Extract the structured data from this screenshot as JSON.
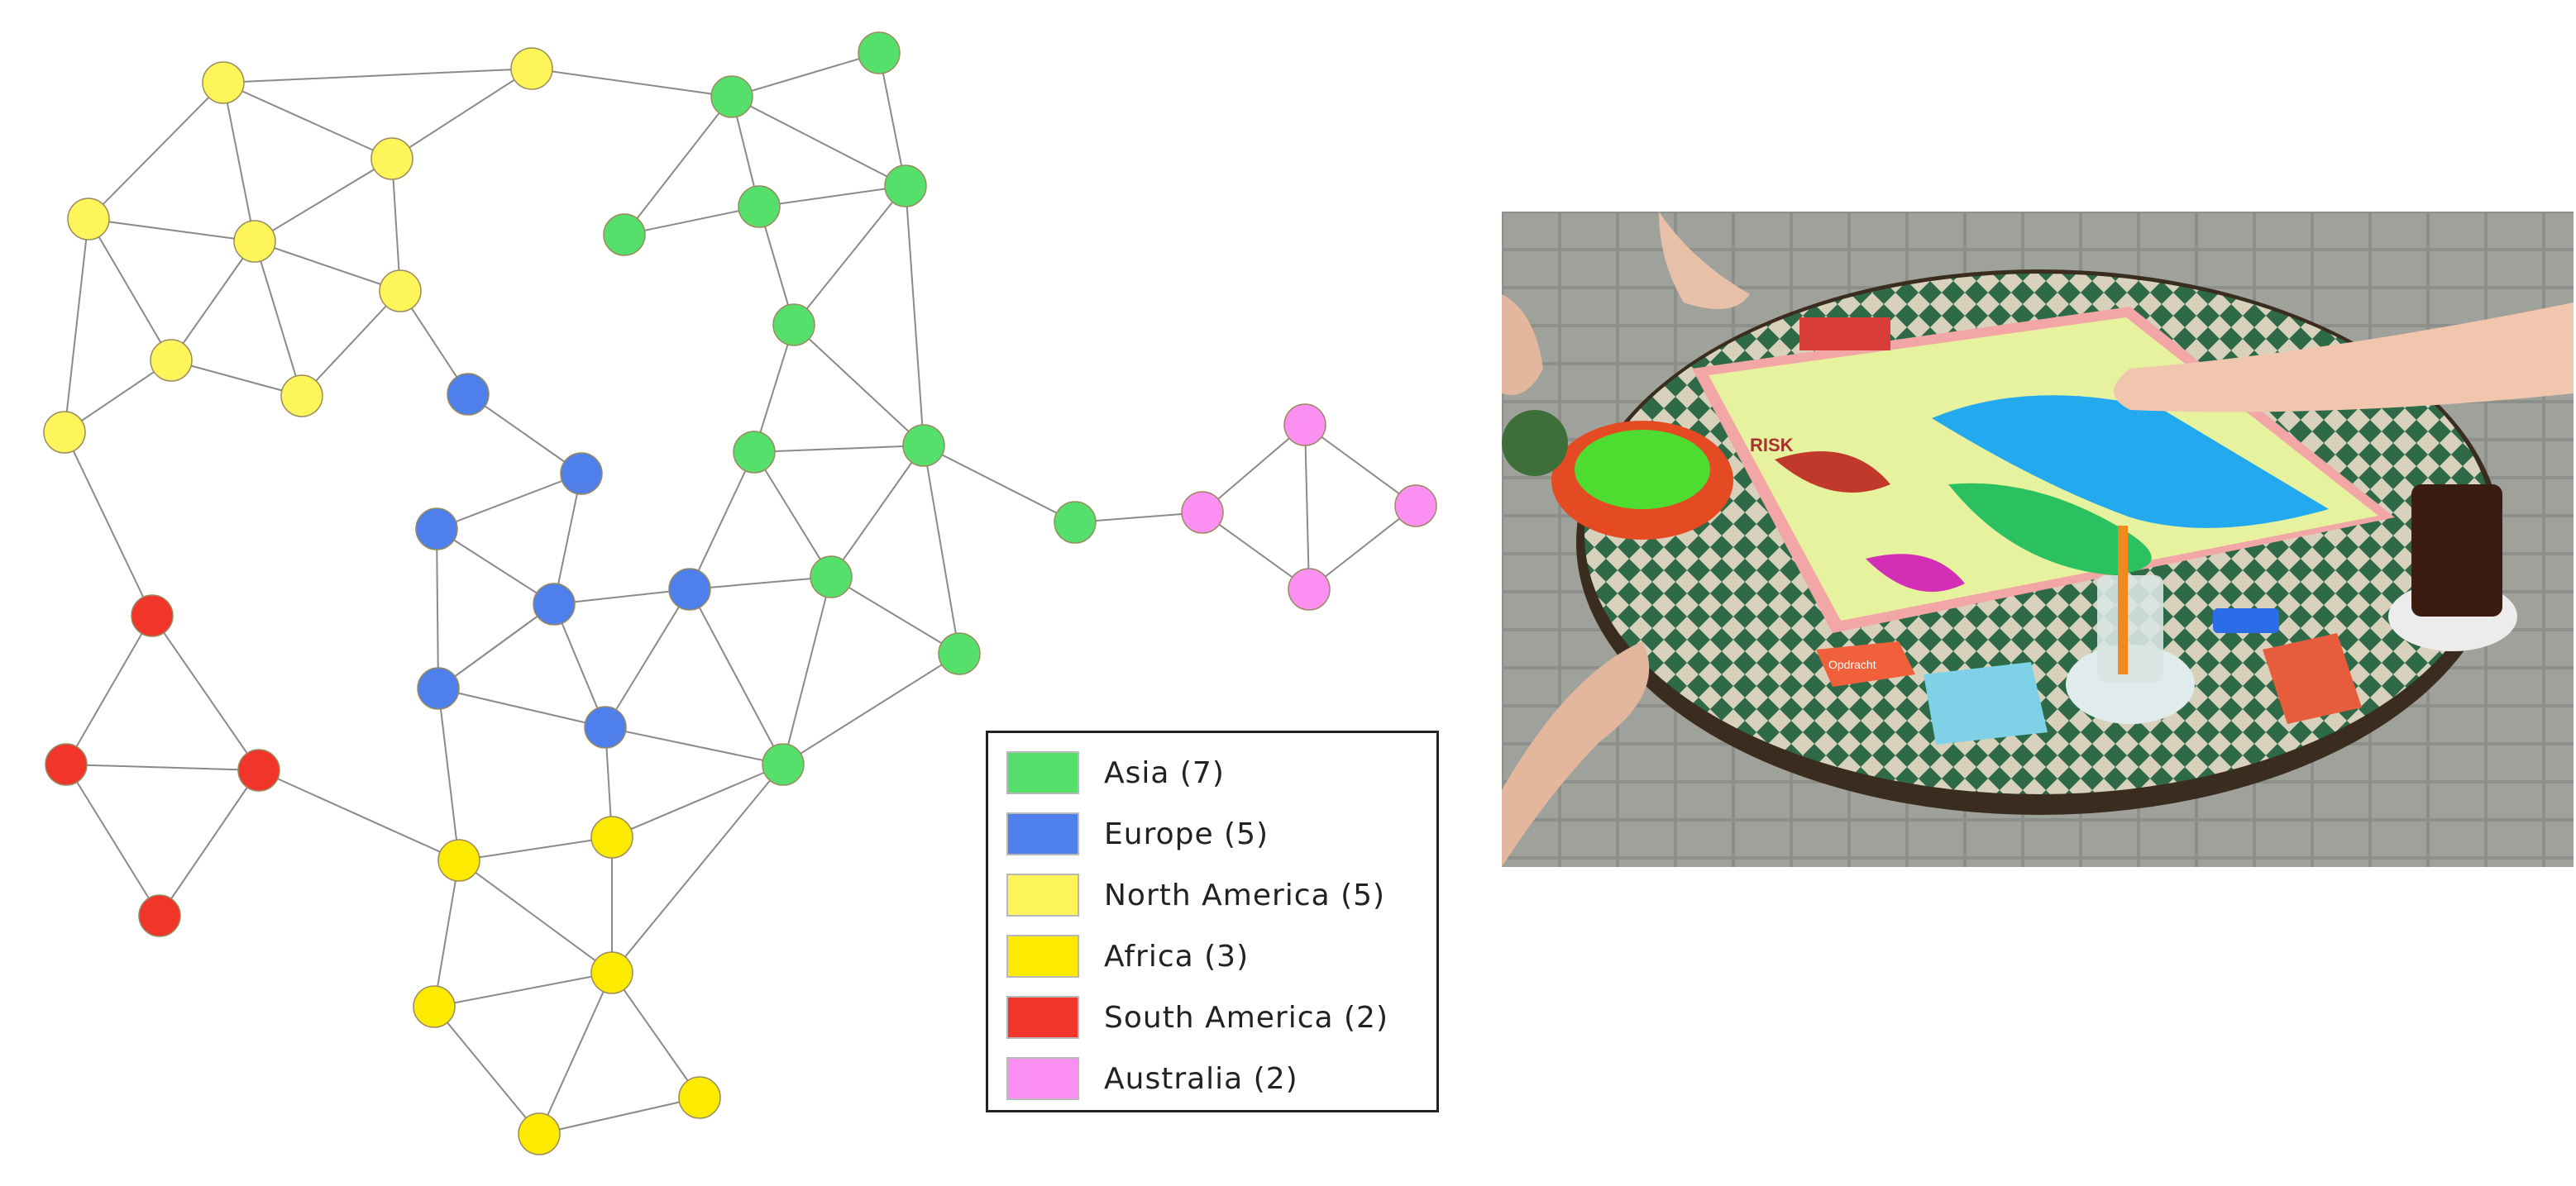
{
  "legend": {
    "items": [
      {
        "label": "Asia (7)",
        "color": "#55e06c"
      },
      {
        "label": "Europe (5)",
        "color": "#4f7fea"
      },
      {
        "label": "North America (5)",
        "color": "#fdf55a"
      },
      {
        "label": "Africa (3)",
        "color": "#fcea00"
      },
      {
        "label": "South America (2)",
        "color": "#f1352a"
      },
      {
        "label": "Australia (2)",
        "color": "#fb8ff2"
      }
    ]
  },
  "photo": {
    "board_texts": [
      "RISK",
      "Opdracht"
    ]
  }
}
